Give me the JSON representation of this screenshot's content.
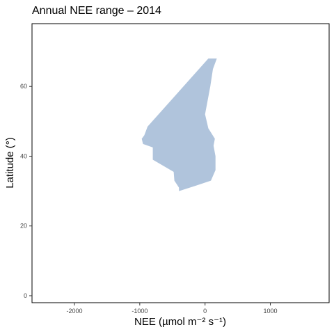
{
  "chart_data": {
    "type": "area",
    "title": "Annual NEE range – 2014",
    "xlabel": "NEE (µmol m⁻² s⁻¹)",
    "ylabel": "Latitude (°)",
    "xlim": [
      -2650,
      1900
    ],
    "ylim": [
      -2,
      78
    ],
    "x_ticks": [
      -2000,
      -1000,
      0,
      1000
    ],
    "x_tick_labels": [
      "-2000",
      "-1000",
      "0",
      "1000"
    ],
    "y_ticks": [
      0,
      20,
      40,
      60
    ],
    "y_tick_labels": [
      "0",
      "20",
      "40",
      "60"
    ],
    "grid": false,
    "fill_color": "#b0c4dc",
    "series": [
      {
        "polygon": [
          {
            "x": 50,
            "y": 68
          },
          {
            "x": 180,
            "y": 68
          },
          {
            "x": 120,
            "y": 65
          },
          {
            "x": 80,
            "y": 60
          },
          {
            "x": 0,
            "y": 52
          },
          {
            "x": 50,
            "y": 48
          },
          {
            "x": 150,
            "y": 45
          },
          {
            "x": 130,
            "y": 43
          },
          {
            "x": 160,
            "y": 40
          },
          {
            "x": 160,
            "y": 36
          },
          {
            "x": 90,
            "y": 33
          },
          {
            "x": -150,
            "y": 31.5
          },
          {
            "x": -400,
            "y": 30
          },
          {
            "x": -400,
            "y": 31
          },
          {
            "x": -470,
            "y": 33
          },
          {
            "x": -480,
            "y": 35.5
          },
          {
            "x": -800,
            "y": 39
          },
          {
            "x": -800,
            "y": 42.5
          },
          {
            "x": -950,
            "y": 43.5
          },
          {
            "x": -970,
            "y": 45
          },
          {
            "x": -930,
            "y": 46
          },
          {
            "x": -880,
            "y": 48.5
          },
          {
            "x": 50,
            "y": 68
          }
        ]
      }
    ]
  }
}
